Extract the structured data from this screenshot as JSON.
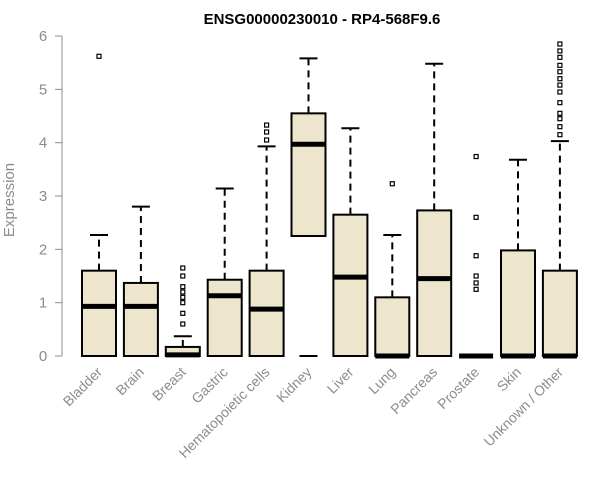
{
  "chart_data": {
    "type": "boxplot",
    "title": "ENSG00000230010 - RP4-568F9.6",
    "ylabel": "Expression",
    "xlabel": "",
    "ylim": [
      0,
      6
    ],
    "yticks": [
      0,
      1,
      2,
      3,
      4,
      5,
      6
    ],
    "grid": false,
    "box_fill": "#ede6cc",
    "categories": [
      "Bladder",
      "Brain",
      "Breast",
      "Gastric",
      "Hematopoietic cells",
      "Kidney",
      "Liver",
      "Lung",
      "Pancreas",
      "Prostate",
      "Skin",
      "Unknown / Other"
    ],
    "boxes": [
      {
        "category": "Bladder",
        "whisker_low": 0,
        "q1": 0,
        "median": 0.93,
        "q3": 1.6,
        "whisker_high": 2.27,
        "outliers": [
          5.62
        ]
      },
      {
        "category": "Brain",
        "whisker_low": 0,
        "q1": 0,
        "median": 0.93,
        "q3": 1.37,
        "whisker_high": 2.8,
        "outliers": []
      },
      {
        "category": "Breast",
        "whisker_low": 0,
        "q1": 0,
        "median": 0.02,
        "q3": 0.17,
        "whisker_high": 0.37,
        "outliers": [
          0.6,
          0.8,
          1.0,
          1.1,
          1.2,
          1.3,
          1.5,
          1.65
        ]
      },
      {
        "category": "Gastric",
        "whisker_low": 0,
        "q1": 0,
        "median": 1.13,
        "q3": 1.43,
        "whisker_high": 3.14,
        "outliers": []
      },
      {
        "category": "Hematopoietic cells",
        "whisker_low": 0,
        "q1": 0,
        "median": 0.88,
        "q3": 1.6,
        "whisker_high": 3.93,
        "outliers": [
          4.05,
          4.2,
          4.33
        ]
      },
      {
        "category": "Kidney",
        "whisker_low": 0,
        "q1": 2.25,
        "median": 3.97,
        "q3": 4.55,
        "whisker_high": 5.58,
        "outliers": []
      },
      {
        "category": "Liver",
        "whisker_low": 0,
        "q1": 0,
        "median": 1.48,
        "q3": 2.65,
        "whisker_high": 4.27,
        "outliers": []
      },
      {
        "category": "Lung",
        "whisker_low": 0,
        "q1": 0,
        "median": 0,
        "q3": 1.1,
        "whisker_high": 2.27,
        "outliers": [
          3.23
        ]
      },
      {
        "category": "Pancreas",
        "whisker_low": 0,
        "q1": 0,
        "median": 1.45,
        "q3": 2.73,
        "whisker_high": 5.48,
        "outliers": []
      },
      {
        "category": "Prostate",
        "whisker_low": 0,
        "q1": 0,
        "median": 0,
        "q3": 0,
        "whisker_high": 0,
        "outliers": [
          1.25,
          1.37,
          1.5,
          1.88,
          2.6,
          3.74
        ]
      },
      {
        "category": "Skin",
        "whisker_low": 0,
        "q1": 0,
        "median": 0,
        "q3": 1.98,
        "whisker_high": 3.68,
        "outliers": []
      },
      {
        "category": "Unknown / Other",
        "whisker_low": 0,
        "q1": 0,
        "median": 0,
        "q3": 1.6,
        "whisker_high": 4.03,
        "outliers": [
          4.15,
          4.3,
          4.45,
          4.55,
          4.75,
          4.95,
          5.08,
          5.2,
          5.33,
          5.45,
          5.6,
          5.72,
          5.85
        ]
      }
    ]
  }
}
